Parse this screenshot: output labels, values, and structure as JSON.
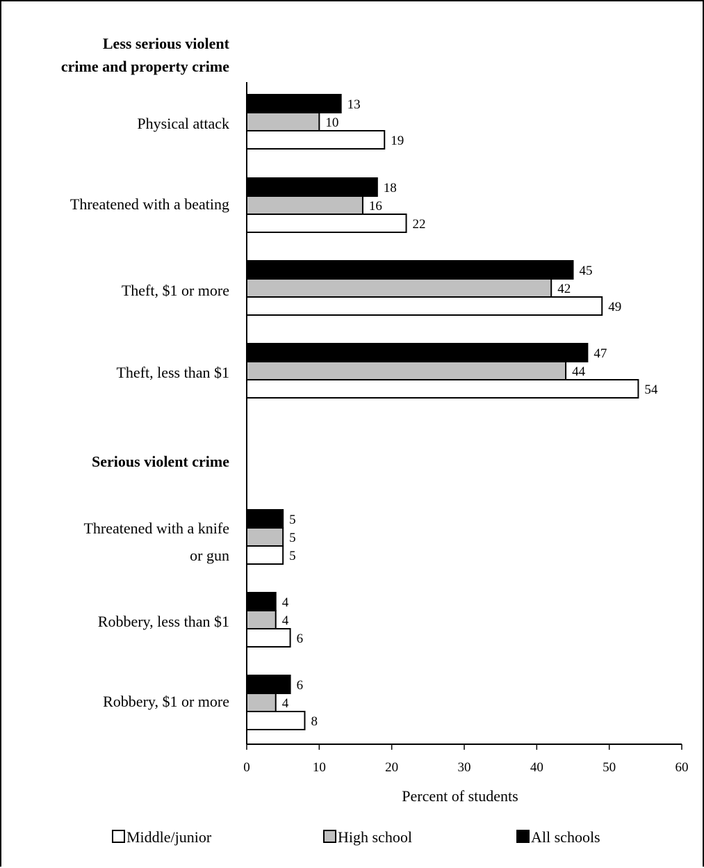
{
  "chart_data": {
    "type": "bar",
    "orientation": "horizontal",
    "xlabel": "Percent of students",
    "xlim": [
      0,
      60
    ],
    "xticks": [
      0,
      10,
      20,
      30,
      40,
      50,
      60
    ],
    "grid": false,
    "legend_position": "bottom",
    "groups": [
      {
        "heading": "Less serious violent\ncrime and property crime",
        "categories": [
          {
            "label": "Physical attack",
            "values": {
              "all": 13,
              "high": 10,
              "middle": 19
            }
          },
          {
            "label": "Threatened with a beating",
            "values": {
              "all": 18,
              "high": 16,
              "middle": 22
            }
          },
          {
            "label": "Theft, $1 or more",
            "values": {
              "all": 45,
              "high": 42,
              "middle": 49
            }
          },
          {
            "label": "Theft, less than $1",
            "values": {
              "all": 47,
              "high": 44,
              "middle": 54
            }
          }
        ]
      },
      {
        "heading": "Serious violent crime",
        "categories": [
          {
            "label": "Threatened with a knife\nor gun",
            "values": {
              "all": 5,
              "high": 5,
              "middle": 5
            }
          },
          {
            "label": "Robbery, less than $1",
            "values": {
              "all": 4,
              "high": 4,
              "middle": 6
            }
          },
          {
            "label": "Robbery, $1 or more",
            "values": {
              "all": 6,
              "high": 4,
              "middle": 8
            }
          }
        ]
      }
    ],
    "series": [
      {
        "key": "middle",
        "name": "Middle/junior",
        "color": "#ffffff"
      },
      {
        "key": "high",
        "name": "High school",
        "color": "#c0c0c0"
      },
      {
        "key": "all",
        "name": "All schools",
        "color": "#000000"
      }
    ]
  }
}
